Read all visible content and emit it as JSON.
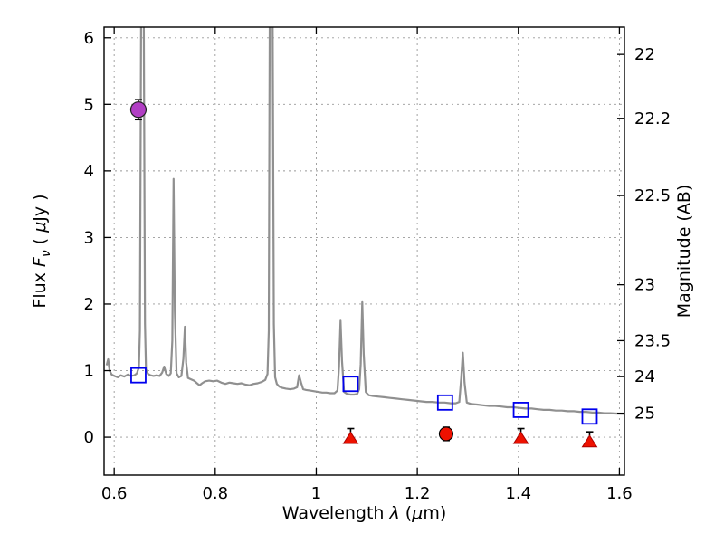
{
  "figure": {
    "background": "#ffffff"
  },
  "chart_data": {
    "type": "line",
    "title": "",
    "xlabel": "Wavelength λ (μm)",
    "ylabel": "Flux Fν ( μJy )",
    "right_ylabel": "Magnitude (AB)",
    "xlabel_parts": [
      {
        "t": "Wavelength  ",
        "it": false
      },
      {
        "t": "λ",
        "it": true
      },
      {
        "t": " (",
        "it": false
      },
      {
        "t": "μ",
        "it": true
      },
      {
        "t": "m)",
        "it": false
      }
    ],
    "ylabel_parts": [
      {
        "t": "Flux  ",
        "it": false
      },
      {
        "t": "F",
        "it": true
      },
      {
        "t": "ν",
        "it": true,
        "sub": true
      },
      {
        "t": " ( ",
        "it": false
      },
      {
        "t": "μ",
        "it": true
      },
      {
        "t": "Jy )",
        "it": false
      }
    ],
    "xlim": [
      0.58,
      1.61
    ],
    "ylim": [
      -0.57,
      6.16
    ],
    "x_ticks": [
      {
        "v": 0.6,
        "label": "0.6"
      },
      {
        "v": 0.8,
        "label": "0.8"
      },
      {
        "v": 1.0,
        "label": "1"
      },
      {
        "v": 1.2,
        "label": "1.2"
      },
      {
        "v": 1.4,
        "label": "1.4"
      },
      {
        "v": 1.6,
        "label": "1.6"
      }
    ],
    "y_ticks": [
      {
        "v": 0,
        "label": "0"
      },
      {
        "v": 1,
        "label": "1"
      },
      {
        "v": 2,
        "label": "2"
      },
      {
        "v": 3,
        "label": "3"
      },
      {
        "v": 4,
        "label": "4"
      },
      {
        "v": 5,
        "label": "5"
      },
      {
        "v": 6,
        "label": "6"
      }
    ],
    "right_ticks": [
      {
        "v": 5.75,
        "label": "22"
      },
      {
        "v": 4.79,
        "label": "22.2"
      },
      {
        "v": 3.63,
        "label": "22.5"
      },
      {
        "v": 2.29,
        "label": "23"
      },
      {
        "v": 1.45,
        "label": "23.5"
      },
      {
        "v": 0.91,
        "label": "24"
      },
      {
        "v": 0.36,
        "label": "25"
      }
    ],
    "grid": {
      "show": true,
      "color": "#999999",
      "dash": "2 4"
    },
    "styles": {
      "spectrum_color": "#909090",
      "square_color": "#0000ee",
      "magenta_color": "#b13fc4",
      "red_color": "#ee1100",
      "errorbar_color": "#000000",
      "spine_color": "#000000"
    },
    "spectrum_points": [
      [
        0.585,
        1.08
      ],
      [
        0.588,
        1.17
      ],
      [
        0.591,
        1.0
      ],
      [
        0.595,
        0.94
      ],
      [
        0.6,
        0.92
      ],
      [
        0.607,
        0.9
      ],
      [
        0.613,
        0.93
      ],
      [
        0.62,
        0.91
      ],
      [
        0.627,
        0.94
      ],
      [
        0.633,
        0.92
      ],
      [
        0.64,
        0.93
      ],
      [
        0.645,
        0.96
      ],
      [
        0.649,
        1.05
      ],
      [
        0.651,
        1.6
      ],
      [
        0.6535,
        6.5
      ],
      [
        0.6585,
        6.5
      ],
      [
        0.661,
        1.7
      ],
      [
        0.663,
        1.02
      ],
      [
        0.667,
        0.95
      ],
      [
        0.672,
        0.93
      ],
      [
        0.678,
        0.92
      ],
      [
        0.684,
        0.93
      ],
      [
        0.69,
        0.92
      ],
      [
        0.695,
        0.97
      ],
      [
        0.699,
        1.06
      ],
      [
        0.703,
        0.95
      ],
      [
        0.708,
        0.92
      ],
      [
        0.712,
        0.96
      ],
      [
        0.715,
        1.45
      ],
      [
        0.7175,
        3.88
      ],
      [
        0.72,
        1.9
      ],
      [
        0.7235,
        0.96
      ],
      [
        0.728,
        0.9
      ],
      [
        0.733,
        0.92
      ],
      [
        0.737,
        1.18
      ],
      [
        0.74,
        1.66
      ],
      [
        0.7425,
        1.12
      ],
      [
        0.746,
        0.89
      ],
      [
        0.752,
        0.87
      ],
      [
        0.758,
        0.85
      ],
      [
        0.764,
        0.81
      ],
      [
        0.769,
        0.78
      ],
      [
        0.774,
        0.81
      ],
      [
        0.78,
        0.84
      ],
      [
        0.788,
        0.85
      ],
      [
        0.796,
        0.84
      ],
      [
        0.804,
        0.85
      ],
      [
        0.812,
        0.82
      ],
      [
        0.82,
        0.8
      ],
      [
        0.828,
        0.82
      ],
      [
        0.836,
        0.81
      ],
      [
        0.844,
        0.8
      ],
      [
        0.852,
        0.81
      ],
      [
        0.86,
        0.79
      ],
      [
        0.868,
        0.78
      ],
      [
        0.876,
        0.8
      ],
      [
        0.884,
        0.81
      ],
      [
        0.892,
        0.83
      ],
      [
        0.899,
        0.86
      ],
      [
        0.9035,
        0.95
      ],
      [
        0.906,
        1.6
      ],
      [
        0.908,
        6.5
      ],
      [
        0.9135,
        6.5
      ],
      [
        0.916,
        1.7
      ],
      [
        0.9185,
        0.9
      ],
      [
        0.922,
        0.8
      ],
      [
        0.927,
        0.76
      ],
      [
        0.933,
        0.74
      ],
      [
        0.94,
        0.73
      ],
      [
        0.948,
        0.72
      ],
      [
        0.956,
        0.73
      ],
      [
        0.962,
        0.75
      ],
      [
        0.966,
        0.93
      ],
      [
        0.97,
        0.82
      ],
      [
        0.974,
        0.72
      ],
      [
        0.98,
        0.71
      ],
      [
        0.988,
        0.7
      ],
      [
        0.996,
        0.69
      ],
      [
        1.004,
        0.68
      ],
      [
        1.012,
        0.67
      ],
      [
        1.02,
        0.67
      ],
      [
        1.028,
        0.66
      ],
      [
        1.036,
        0.66
      ],
      [
        1.042,
        0.7
      ],
      [
        1.045,
        1.05
      ],
      [
        1.048,
        1.75
      ],
      [
        1.051,
        1.15
      ],
      [
        1.055,
        0.68
      ],
      [
        1.061,
        0.65
      ],
      [
        1.068,
        0.64
      ],
      [
        1.075,
        0.64
      ],
      [
        1.081,
        0.65
      ],
      [
        1.085,
        0.72
      ],
      [
        1.088,
        1.1
      ],
      [
        1.091,
        2.03
      ],
      [
        1.094,
        1.25
      ],
      [
        1.098,
        0.68
      ],
      [
        1.104,
        0.63
      ],
      [
        1.112,
        0.62
      ],
      [
        1.122,
        0.61
      ],
      [
        1.134,
        0.6
      ],
      [
        1.146,
        0.59
      ],
      [
        1.158,
        0.58
      ],
      [
        1.17,
        0.57
      ],
      [
        1.182,
        0.56
      ],
      [
        1.194,
        0.55
      ],
      [
        1.206,
        0.54
      ],
      [
        1.218,
        0.53
      ],
      [
        1.23,
        0.53
      ],
      [
        1.242,
        0.52
      ],
      [
        1.254,
        0.52
      ],
      [
        1.266,
        0.51
      ],
      [
        1.276,
        0.51
      ],
      [
        1.283,
        0.53
      ],
      [
        1.287,
        0.9
      ],
      [
        1.29,
        1.27
      ],
      [
        1.2935,
        0.82
      ],
      [
        1.298,
        0.52
      ],
      [
        1.306,
        0.5
      ],
      [
        1.318,
        0.49
      ],
      [
        1.33,
        0.48
      ],
      [
        1.342,
        0.47
      ],
      [
        1.354,
        0.47
      ],
      [
        1.366,
        0.46
      ],
      [
        1.378,
        0.45
      ],
      [
        1.39,
        0.45
      ],
      [
        1.402,
        0.44
      ],
      [
        1.414,
        0.43
      ],
      [
        1.426,
        0.43
      ],
      [
        1.438,
        0.42
      ],
      [
        1.45,
        0.41
      ],
      [
        1.462,
        0.41
      ],
      [
        1.474,
        0.4
      ],
      [
        1.486,
        0.4
      ],
      [
        1.498,
        0.39
      ],
      [
        1.51,
        0.39
      ],
      [
        1.522,
        0.38
      ],
      [
        1.534,
        0.38
      ],
      [
        1.546,
        0.37
      ],
      [
        1.558,
        0.37
      ],
      [
        1.57,
        0.36
      ],
      [
        1.582,
        0.36
      ],
      [
        1.594,
        0.355
      ],
      [
        1.606,
        0.35
      ],
      [
        1.61,
        0.35
      ]
    ],
    "markers": {
      "magenta_point": {
        "x": 0.648,
        "y": 4.92,
        "yerr": 0.15
      },
      "blue_squares": [
        [
          0.648,
          0.93
        ],
        [
          1.068,
          0.8
        ],
        [
          1.255,
          0.52
        ],
        [
          1.405,
          0.41
        ],
        [
          1.541,
          0.31
        ]
      ],
      "red_circle": {
        "x": 1.257,
        "y": 0.05,
        "yerr": 0.1
      },
      "red_triangles": [
        {
          "x": 1.068,
          "y": -0.02,
          "bar_y": 0.05,
          "yerr": 0.08
        },
        {
          "x": 1.405,
          "y": -0.02,
          "bar_y": 0.05,
          "yerr": 0.08
        },
        {
          "x": 1.541,
          "y": -0.07,
          "bar_y": 0.0,
          "yerr": 0.08
        }
      ]
    }
  }
}
